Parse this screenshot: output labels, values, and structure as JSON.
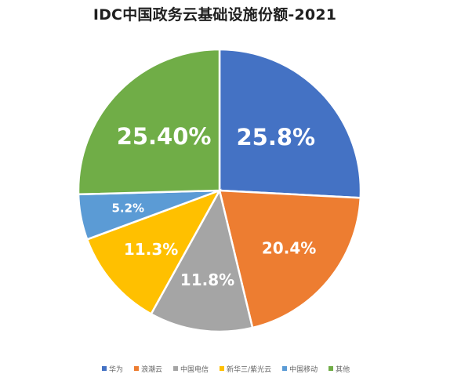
{
  "chart_data": {
    "type": "pie",
    "title": "IDC中国政务云基础设施份额-2021",
    "slices": [
      {
        "name": "华为",
        "value": 25.8,
        "label": "25.8%",
        "color": "#4472C4"
      },
      {
        "name": "浪潮云",
        "value": 20.4,
        "label": "20.4%",
        "color": "#ED7D31"
      },
      {
        "name": "中国电信",
        "value": 11.8,
        "label": "11.8%",
        "color": "#A5A5A5"
      },
      {
        "name": "新华三/紫光云",
        "value": 11.3,
        "label": "11.3%",
        "color": "#FFC000"
      },
      {
        "name": "中国移动",
        "value": 5.2,
        "label": "5.2%",
        "color": "#5B9BD5"
      },
      {
        "name": "其他",
        "value": 25.4,
        "label": "25.40%",
        "color": "#70AD47"
      }
    ],
    "legend_position": "bottom"
  }
}
